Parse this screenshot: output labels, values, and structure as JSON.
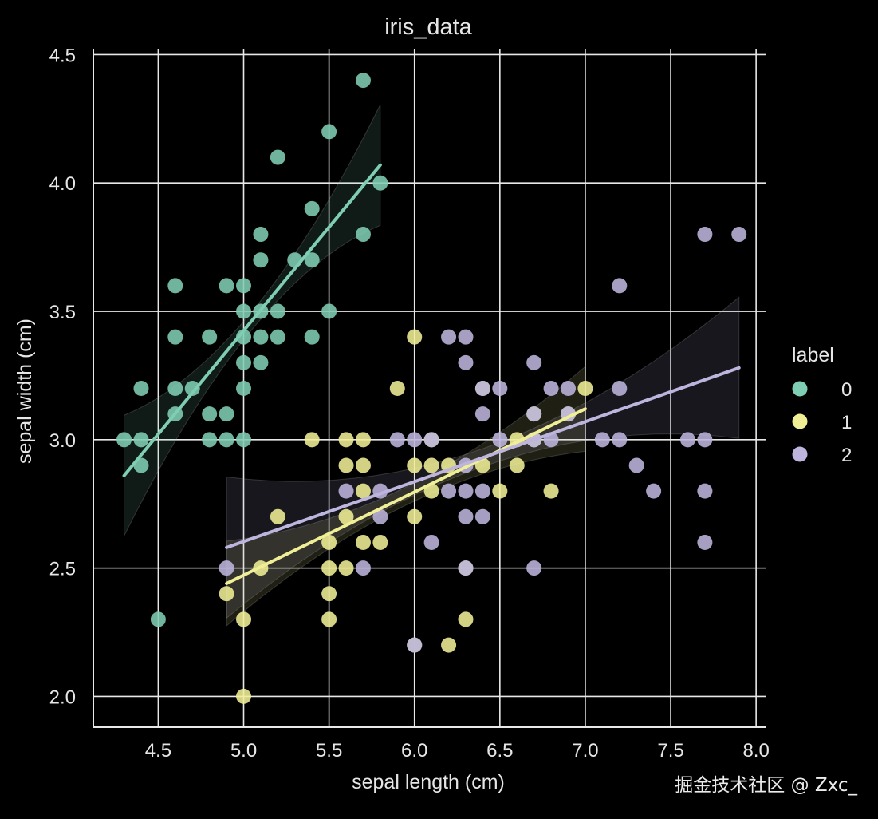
{
  "chart_data": {
    "type": "scatter",
    "title": "iris_data",
    "xlabel": "sepal length (cm)",
    "ylabel": "sepal width (cm)",
    "xlim": [
      4.12,
      8.06
    ],
    "ylim": [
      1.88,
      4.52
    ],
    "xticks": [
      "4.5",
      "5.0",
      "5.5",
      "6.0",
      "6.5",
      "7.0",
      "7.5",
      "8.0"
    ],
    "yticks": [
      "2.0",
      "2.5",
      "3.0",
      "3.5",
      "4.0",
      "4.5"
    ],
    "grid": true,
    "legend": {
      "title": "label",
      "placement": "right"
    },
    "series": [
      {
        "name": "0",
        "color": "#7fcdb3",
        "fit": {
          "x": [
            4.3,
            5.8
          ],
          "y": [
            2.86,
            4.07
          ]
        },
        "points": [
          [
            4.3,
            3.0
          ],
          [
            4.4,
            3.0
          ],
          [
            4.4,
            2.9
          ],
          [
            4.4,
            3.2
          ],
          [
            4.5,
            2.3
          ],
          [
            4.6,
            3.1
          ],
          [
            4.6,
            3.2
          ],
          [
            4.6,
            3.4
          ],
          [
            4.6,
            3.6
          ],
          [
            4.7,
            3.2
          ],
          [
            4.8,
            3.0
          ],
          [
            4.8,
            3.1
          ],
          [
            4.8,
            3.4
          ],
          [
            4.9,
            3.0
          ],
          [
            4.9,
            3.1
          ],
          [
            4.9,
            3.6
          ],
          [
            5.0,
            3.0
          ],
          [
            5.0,
            3.2
          ],
          [
            5.0,
            3.3
          ],
          [
            5.0,
            3.4
          ],
          [
            5.0,
            3.5
          ],
          [
            5.0,
            3.6
          ],
          [
            5.1,
            3.3
          ],
          [
            5.1,
            3.4
          ],
          [
            5.1,
            3.5
          ],
          [
            5.1,
            3.7
          ],
          [
            5.1,
            3.8
          ],
          [
            5.2,
            3.4
          ],
          [
            5.2,
            3.5
          ],
          [
            5.2,
            4.1
          ],
          [
            5.3,
            3.7
          ],
          [
            5.4,
            3.4
          ],
          [
            5.4,
            3.7
          ],
          [
            5.4,
            3.9
          ],
          [
            5.5,
            3.5
          ],
          [
            5.5,
            4.2
          ],
          [
            5.7,
            3.8
          ],
          [
            5.7,
            4.4
          ],
          [
            5.8,
            4.0
          ]
        ]
      },
      {
        "name": "1",
        "color": "#f0ef96",
        "fit": {
          "x": [
            4.9,
            7.0
          ],
          "y": [
            2.44,
            3.12
          ]
        },
        "points": [
          [
            4.9,
            2.4
          ],
          [
            5.0,
            2.0
          ],
          [
            5.0,
            2.3
          ],
          [
            5.1,
            2.5
          ],
          [
            5.2,
            2.7
          ],
          [
            5.4,
            3.0
          ],
          [
            5.5,
            2.3
          ],
          [
            5.5,
            2.4
          ],
          [
            5.5,
            2.5
          ],
          [
            5.5,
            2.6
          ],
          [
            5.6,
            2.5
          ],
          [
            5.6,
            2.7
          ],
          [
            5.6,
            2.9
          ],
          [
            5.6,
            3.0
          ],
          [
            5.7,
            2.6
          ],
          [
            5.7,
            2.8
          ],
          [
            5.7,
            2.9
          ],
          [
            5.7,
            3.0
          ],
          [
            5.8,
            2.6
          ],
          [
            5.9,
            3.2
          ],
          [
            6.0,
            2.2
          ],
          [
            6.0,
            2.7
          ],
          [
            6.0,
            2.9
          ],
          [
            6.0,
            3.4
          ],
          [
            6.1,
            2.8
          ],
          [
            6.1,
            2.9
          ],
          [
            6.1,
            3.0
          ],
          [
            6.2,
            2.2
          ],
          [
            6.2,
            2.9
          ],
          [
            6.3,
            2.3
          ],
          [
            6.3,
            2.5
          ],
          [
            6.4,
            2.9
          ],
          [
            6.4,
            3.2
          ],
          [
            6.5,
            2.8
          ],
          [
            6.6,
            2.9
          ],
          [
            6.6,
            3.0
          ],
          [
            6.7,
            3.0
          ],
          [
            6.7,
            3.1
          ],
          [
            6.8,
            2.8
          ],
          [
            6.9,
            3.1
          ],
          [
            7.0,
            3.2
          ]
        ]
      },
      {
        "name": "2",
        "color": "#bdb5dd",
        "fit": {
          "x": [
            4.9,
            7.9
          ],
          "y": [
            2.58,
            3.28
          ]
        },
        "points": [
          [
            4.9,
            2.5
          ],
          [
            5.6,
            2.8
          ],
          [
            5.7,
            2.5
          ],
          [
            5.8,
            2.7
          ],
          [
            5.8,
            2.8
          ],
          [
            5.9,
            3.0
          ],
          [
            6.0,
            2.2
          ],
          [
            6.0,
            3.0
          ],
          [
            6.1,
            2.6
          ],
          [
            6.1,
            3.0
          ],
          [
            6.2,
            2.8
          ],
          [
            6.2,
            3.4
          ],
          [
            6.3,
            2.5
          ],
          [
            6.3,
            2.7
          ],
          [
            6.3,
            2.8
          ],
          [
            6.3,
            2.9
          ],
          [
            6.3,
            3.3
          ],
          [
            6.3,
            3.4
          ],
          [
            6.4,
            2.7
          ],
          [
            6.4,
            2.8
          ],
          [
            6.4,
            3.1
          ],
          [
            6.4,
            3.2
          ],
          [
            6.5,
            3.0
          ],
          [
            6.5,
            3.2
          ],
          [
            6.7,
            2.5
          ],
          [
            6.7,
            3.0
          ],
          [
            6.7,
            3.1
          ],
          [
            6.7,
            3.3
          ],
          [
            6.8,
            3.0
          ],
          [
            6.8,
            3.2
          ],
          [
            6.9,
            3.1
          ],
          [
            6.9,
            3.2
          ],
          [
            7.1,
            3.0
          ],
          [
            7.2,
            3.0
          ],
          [
            7.2,
            3.2
          ],
          [
            7.2,
            3.6
          ],
          [
            7.3,
            2.9
          ],
          [
            7.4,
            2.8
          ],
          [
            7.6,
            3.0
          ],
          [
            7.7,
            2.6
          ],
          [
            7.7,
            2.8
          ],
          [
            7.7,
            3.0
          ],
          [
            7.7,
            3.8
          ],
          [
            7.9,
            3.8
          ]
        ]
      }
    ]
  },
  "watermark": "掘金技术社区 @ Zxc_"
}
